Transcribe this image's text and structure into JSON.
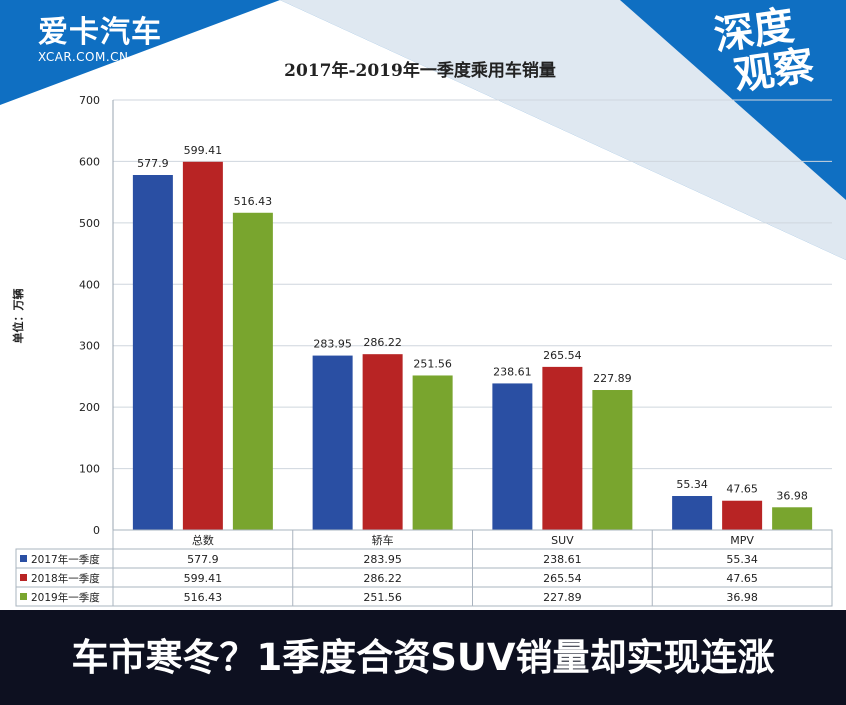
{
  "brand": {
    "name": "爱卡汽车",
    "domain": "XCAR.COM.CN"
  },
  "badge": {
    "line1": "深度",
    "line2": "观察"
  },
  "headline": "车市寒冬？1季度合资SUV销量却实现连涨",
  "colors": {
    "page_blue": "#0f6fc2",
    "headline_bg": "#0d1020",
    "series": [
      "#2a4fa3",
      "#b82424",
      "#79a52e"
    ]
  },
  "chart_data": {
    "type": "bar",
    "title": "2017年-2019年一季度乘用车销量",
    "ylabel": "单位：万辆",
    "xlabel": "",
    "ylim": [
      0,
      700
    ],
    "yticks": [
      0,
      100,
      200,
      300,
      400,
      500,
      600,
      700
    ],
    "grid": true,
    "legend": "table-below",
    "categories": [
      "总数",
      "轿车",
      "SUV",
      "MPV"
    ],
    "series": [
      {
        "name": "2017年一季度",
        "values": [
          577.9,
          283.95,
          238.61,
          55.34
        ]
      },
      {
        "name": "2018年一季度",
        "values": [
          599.41,
          286.22,
          265.54,
          47.65
        ]
      },
      {
        "name": "2019年一季度",
        "values": [
          516.43,
          251.56,
          227.89,
          36.98
        ]
      }
    ],
    "data_labels": [
      [
        "577.9",
        "283.95",
        "238.61",
        "55.34"
      ],
      [
        "599.41",
        "286.22",
        "265.54",
        "47.65"
      ],
      [
        "516.43",
        "251.56",
        "227.89",
        "36.98"
      ]
    ]
  }
}
